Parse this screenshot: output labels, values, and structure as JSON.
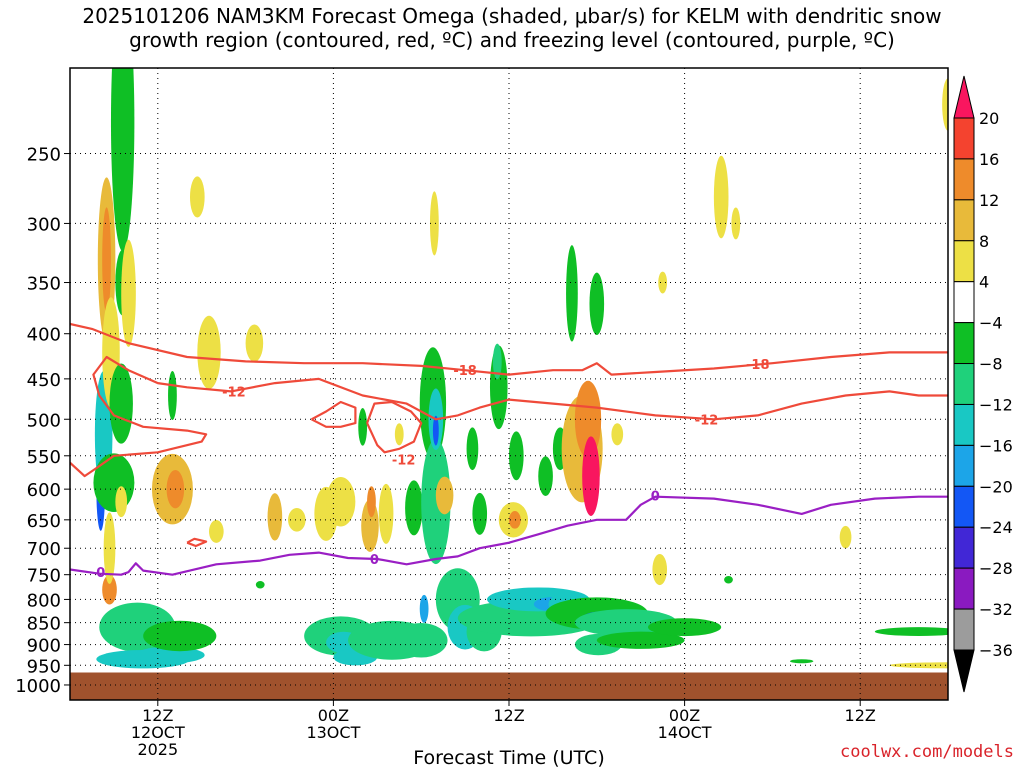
{
  "title_line1": "2025101206 NAM3KM Forecast Omega (shaded, μbar/s) for KELM with dendritic snow",
  "title_line2": "growth region (contoured, red, ºC) and freezing level (contoured, purple, ºC)",
  "credit": "coolwx.com/models",
  "chart_data": {
    "type": "heatmap",
    "title": "2025101206 NAM3KM Forecast Omega (shaded, μbar/s) for KELM with dendritic snow growth region (contoured, red, ºC) and freezing level (contoured, purple, ºC)",
    "xlabel": "Forecast Time (UTC)",
    "ylabel": "",
    "xlim_hours": [
      0,
      60
    ],
    "ylim_pressure": [
      200,
      1040
    ],
    "y_scale": "log",
    "y_ticks": [
      250,
      300,
      350,
      400,
      450,
      500,
      550,
      600,
      650,
      700,
      750,
      800,
      850,
      900,
      950,
      1000
    ],
    "x_ticks": [
      {
        "hour": 6,
        "lines": [
          "12Z",
          "12OCT",
          "2025"
        ]
      },
      {
        "hour": 18,
        "lines": [
          "00Z",
          "13OCT"
        ]
      },
      {
        "hour": 30,
        "lines": [
          "12Z"
        ]
      },
      {
        "hour": 42,
        "lines": [
          "00Z",
          "14OCT"
        ]
      },
      {
        "hour": 54,
        "lines": [
          "12Z"
        ]
      }
    ],
    "grid": true,
    "surface_pressure": 968,
    "colorbar": {
      "levels": [
        20,
        16,
        12,
        8,
        4,
        -4,
        -8,
        -12,
        -16,
        -20,
        -24,
        -28,
        -32,
        -36
      ],
      "colors": [
        "#f9165f",
        "#f4432f",
        "#ee8b2b",
        "#e8ba3a",
        "#ede045",
        "#ffffff",
        "#0fbf25",
        "#1fd17b",
        "#19c8c4",
        "#1ca5e8",
        "#1357f5",
        "#4127d6",
        "#8a1ac0",
        "#9c9c9c",
        "#000000"
      ]
    },
    "omega_features": [
      {
        "t": 2.1,
        "p": 600,
        "dt": 0.3,
        "dp": 130,
        "v": -24
      },
      {
        "t": 2.3,
        "p": 520,
        "dt": 0.6,
        "dp": 170,
        "v": -16
      },
      {
        "t": 2.5,
        "p": 330,
        "dt": 0.6,
        "dp": 140,
        "v": 10
      },
      {
        "t": 2.5,
        "p": 330,
        "dt": 0.3,
        "dp": 90,
        "v": 14
      },
      {
        "t": 2.8,
        "p": 420,
        "dt": 0.6,
        "dp": 120,
        "v": 6
      },
      {
        "t": 2.7,
        "p": 780,
        "dt": 0.5,
        "dp": 60,
        "v": 12
      },
      {
        "t": 2.7,
        "p": 700,
        "dt": 0.4,
        "dp": 130,
        "v": 6
      },
      {
        "t": 3.0,
        "p": 590,
        "dt": 1.4,
        "dp": 90,
        "v": -8
      },
      {
        "t": 3.6,
        "p": 230,
        "dt": 0.8,
        "dp": 150,
        "v": -8
      },
      {
        "t": 3.6,
        "p": 350,
        "dt": 0.5,
        "dp": 60,
        "v": -8
      },
      {
        "t": 3.5,
        "p": 480,
        "dt": 0.8,
        "dp": 100,
        "v": -8
      },
      {
        "t": 4.0,
        "p": 360,
        "dt": 0.5,
        "dp": 100,
        "v": 6
      },
      {
        "t": 4.6,
        "p": 860,
        "dt": 2.6,
        "dp": 110,
        "v": -10
      },
      {
        "t": 5.0,
        "p": 935,
        "dt": 3.2,
        "dp": 45,
        "v": -16
      },
      {
        "t": 6.8,
        "p": 925,
        "dt": 2.4,
        "dp": 40,
        "v": -14
      },
      {
        "t": 7.5,
        "p": 880,
        "dt": 2.5,
        "dp": 70,
        "v": -8
      },
      {
        "t": 3.5,
        "p": 620,
        "dt": 0.4,
        "dp": 50,
        "v": 6
      },
      {
        "t": 7.0,
        "p": 470,
        "dt": 0.3,
        "dp": 60,
        "v": -8
      },
      {
        "t": 7.0,
        "p": 600,
        "dt": 1.4,
        "dp": 110,
        "v": 8
      },
      {
        "t": 7.2,
        "p": 600,
        "dt": 0.6,
        "dp": 60,
        "v": 13
      },
      {
        "t": 8.7,
        "p": 280,
        "dt": 0.5,
        "dp": 30,
        "v": 6
      },
      {
        "t": 9.5,
        "p": 420,
        "dt": 0.8,
        "dp": 80,
        "v": 6
      },
      {
        "t": 10.0,
        "p": 670,
        "dt": 0.5,
        "dp": 40,
        "v": 6
      },
      {
        "t": 12.6,
        "p": 410,
        "dt": 0.6,
        "dp": 40,
        "v": 6
      },
      {
        "t": 13.0,
        "p": 770,
        "dt": 0.3,
        "dp": 15,
        "v": -8
      },
      {
        "t": 14.0,
        "p": 645,
        "dt": 0.5,
        "dp": 80,
        "v": 8
      },
      {
        "t": 15.5,
        "p": 650,
        "dt": 0.6,
        "dp": 40,
        "v": 6
      },
      {
        "t": 17.5,
        "p": 640,
        "dt": 0.8,
        "dp": 90,
        "v": 6
      },
      {
        "t": 18.5,
        "p": 620,
        "dt": 1.0,
        "dp": 80,
        "v": 6
      },
      {
        "t": 18.5,
        "p": 880,
        "dt": 2.5,
        "dp": 90,
        "v": -10
      },
      {
        "t": 18.7,
        "p": 895,
        "dt": 1.2,
        "dp": 50,
        "v": -14
      },
      {
        "t": 19.5,
        "p": 930,
        "dt": 1.5,
        "dp": 40,
        "v": -16
      },
      {
        "t": 20.0,
        "p": 510,
        "dt": 0.3,
        "dp": 50,
        "v": -8
      },
      {
        "t": 20.5,
        "p": 660,
        "dt": 0.6,
        "dp": 90,
        "v": 8
      },
      {
        "t": 20.6,
        "p": 620,
        "dt": 0.3,
        "dp": 50,
        "v": 12
      },
      {
        "t": 21.6,
        "p": 640,
        "dt": 0.5,
        "dp": 100,
        "v": 6
      },
      {
        "t": 22.0,
        "p": 890,
        "dt": 3.0,
        "dp": 90,
        "v": -10
      },
      {
        "t": 22.5,
        "p": 520,
        "dt": 0.3,
        "dp": 30,
        "v": 6
      },
      {
        "t": 23.5,
        "p": 630,
        "dt": 0.6,
        "dp": 90,
        "v": -8
      },
      {
        "t": 24.0,
        "p": 890,
        "dt": 1.8,
        "dp": 80,
        "v": -12
      },
      {
        "t": 24.2,
        "p": 820,
        "dt": 0.3,
        "dp": 60,
        "v": -20
      },
      {
        "t": 24.8,
        "p": 480,
        "dt": 0.9,
        "dp": 140,
        "v": -8
      },
      {
        "t": 25.0,
        "p": 620,
        "dt": 1.0,
        "dp": 200,
        "v": -10
      },
      {
        "t": 25.0,
        "p": 500,
        "dt": 0.5,
        "dp": 80,
        "v": -14
      },
      {
        "t": 25.0,
        "p": 515,
        "dt": 0.2,
        "dp": 40,
        "v": -22
      },
      {
        "t": 24.9,
        "p": 300,
        "dt": 0.3,
        "dp": 50,
        "v": 6
      },
      {
        "t": 25.6,
        "p": 610,
        "dt": 0.6,
        "dp": 60,
        "v": 8
      },
      {
        "t": 26.5,
        "p": 800,
        "dt": 1.5,
        "dp": 130,
        "v": -10
      },
      {
        "t": 27.0,
        "p": 860,
        "dt": 1.2,
        "dp": 100,
        "v": -14
      },
      {
        "t": 27.5,
        "p": 540,
        "dt": 0.4,
        "dp": 60,
        "v": -8
      },
      {
        "t": 28.0,
        "p": 640,
        "dt": 0.5,
        "dp": 70,
        "v": -8
      },
      {
        "t": 28.3,
        "p": 870,
        "dt": 1.2,
        "dp": 90,
        "v": -10
      },
      {
        "t": 29.3,
        "p": 460,
        "dt": 0.6,
        "dp": 100,
        "v": -8
      },
      {
        "t": 29.2,
        "p": 430,
        "dt": 0.3,
        "dp": 40,
        "v": -12
      },
      {
        "t": 30.3,
        "p": 650,
        "dt": 1.0,
        "dp": 60,
        "v": 6
      },
      {
        "t": 30.4,
        "p": 650,
        "dt": 0.4,
        "dp": 30,
        "v": 12
      },
      {
        "t": 30.5,
        "p": 550,
        "dt": 0.5,
        "dp": 70,
        "v": -8
      },
      {
        "t": 31.5,
        "p": 840,
        "dt": 5.0,
        "dp": 80,
        "v": -10
      },
      {
        "t": 32.0,
        "p": 800,
        "dt": 3.5,
        "dp": 50,
        "v": -14
      },
      {
        "t": 33.0,
        "p": 810,
        "dt": 1.3,
        "dp": 30,
        "v": -18
      },
      {
        "t": 34.0,
        "p": 810,
        "dt": 1.3,
        "dp": 50,
        "v": -14
      },
      {
        "t": 33.5,
        "p": 540,
        "dt": 0.5,
        "dp": 60,
        "v": -8
      },
      {
        "t": 32.5,
        "p": 580,
        "dt": 0.5,
        "dp": 60,
        "v": -8
      },
      {
        "t": 34.3,
        "p": 360,
        "dt": 0.4,
        "dp": 90,
        "v": -8
      },
      {
        "t": 35.0,
        "p": 540,
        "dt": 1.4,
        "dp": 150,
        "v": 10
      },
      {
        "t": 35.4,
        "p": 500,
        "dt": 0.9,
        "dp": 100,
        "v": 13
      },
      {
        "t": 35.6,
        "p": 580,
        "dt": 0.6,
        "dp": 120,
        "v": 20
      },
      {
        "t": 36.1,
        "p": 900,
        "dt": 1.6,
        "dp": 50,
        "v": -10
      },
      {
        "t": 36.0,
        "p": 830,
        "dt": 3.5,
        "dp": 70,
        "v": -8
      },
      {
        "t": 36.5,
        "p": 840,
        "dt": 1.5,
        "dp": 30,
        "v": -22
      },
      {
        "t": 36.0,
        "p": 370,
        "dt": 0.5,
        "dp": 60,
        "v": -8
      },
      {
        "t": 37.4,
        "p": 520,
        "dt": 0.4,
        "dp": 30,
        "v": 6
      },
      {
        "t": 38.0,
        "p": 850,
        "dt": 3.5,
        "dp": 60,
        "v": -10
      },
      {
        "t": 39.0,
        "p": 890,
        "dt": 3.0,
        "dp": 40,
        "v": -8
      },
      {
        "t": 40.3,
        "p": 740,
        "dt": 0.5,
        "dp": 60,
        "v": 6
      },
      {
        "t": 40.5,
        "p": 350,
        "dt": 0.3,
        "dp": 20,
        "v": 6
      },
      {
        "t": 42.0,
        "p": 860,
        "dt": 2.5,
        "dp": 40,
        "v": -8
      },
      {
        "t": 44.5,
        "p": 280,
        "dt": 0.5,
        "dp": 60,
        "v": 6
      },
      {
        "t": 45.5,
        "p": 300,
        "dt": 0.3,
        "dp": 25,
        "v": 6
      },
      {
        "t": 45.0,
        "p": 760,
        "dt": 0.3,
        "dp": 15,
        "v": -8
      },
      {
        "t": 50.0,
        "p": 940,
        "dt": 0.8,
        "dp": 10,
        "v": -8
      },
      {
        "t": 53.0,
        "p": 680,
        "dt": 0.4,
        "dp": 40,
        "v": 6
      },
      {
        "t": 58.0,
        "p": 870,
        "dt": 3.0,
        "dp": 20,
        "v": -8
      },
      {
        "t": 60.0,
        "p": 950,
        "dt": 4.0,
        "dp": 15,
        "v": 6
      },
      {
        "t": 60.0,
        "p": 220,
        "dt": 0.4,
        "dp": 30,
        "v": 6
      }
    ],
    "contours_red": [
      {
        "label": "-18",
        "label_at": [
          [
            27.0,
            440
          ],
          [
            47.0,
            433
          ]
        ],
        "points": [
          [
            0,
            390
          ],
          [
            1.5,
            395
          ],
          [
            4,
            410
          ],
          [
            8,
            425
          ],
          [
            12,
            430
          ],
          [
            16,
            432
          ],
          [
            20,
            432
          ],
          [
            24,
            435
          ],
          [
            27,
            440
          ],
          [
            30,
            445
          ],
          [
            33,
            440
          ],
          [
            35,
            440
          ],
          [
            36,
            432
          ],
          [
            37,
            445
          ],
          [
            40,
            442
          ],
          [
            44,
            438
          ],
          [
            48,
            432
          ],
          [
            52,
            425
          ],
          [
            56,
            420
          ],
          [
            60,
            420
          ]
        ]
      },
      {
        "label": "-12",
        "label_at": [
          [
            11.2,
            465
          ],
          [
            22.8,
            555
          ],
          [
            43.5,
            500
          ]
        ],
        "points": [
          [
            0,
            560
          ],
          [
            1,
            580
          ],
          [
            2,
            565
          ],
          [
            3,
            550
          ],
          [
            6,
            545
          ],
          [
            9,
            530
          ],
          [
            9.3,
            520
          ],
          [
            8,
            515
          ],
          [
            5,
            510
          ],
          [
            3,
            495
          ],
          [
            2.0,
            470
          ],
          [
            1.6,
            445
          ],
          [
            2.5,
            425
          ],
          [
            4,
            440
          ],
          [
            6,
            455
          ],
          [
            8,
            460
          ],
          [
            11,
            465
          ],
          [
            14,
            455
          ],
          [
            17,
            450
          ],
          [
            20,
            470
          ],
          [
            23,
            480
          ],
          [
            25,
            500
          ],
          [
            26.5,
            495
          ],
          [
            28,
            485
          ],
          [
            30,
            475
          ],
          [
            33,
            480
          ],
          [
            36,
            485
          ],
          [
            40,
            495
          ],
          [
            44,
            500
          ],
          [
            47,
            495
          ],
          [
            50,
            480
          ],
          [
            53,
            470
          ],
          [
            56,
            465
          ],
          [
            58,
            470
          ],
          [
            60,
            470
          ]
        ]
      },
      {
        "label": "",
        "label_at": [],
        "points": [
          [
            16.5,
            500
          ],
          [
            17.5,
            490
          ],
          [
            18.5,
            478
          ],
          [
            19.5,
            485
          ],
          [
            19.5,
            505
          ],
          [
            18.5,
            510
          ],
          [
            17.5,
            510
          ],
          [
            16.5,
            500
          ]
        ]
      },
      {
        "label": "",
        "label_at": [],
        "points": [
          [
            20.3,
            505
          ],
          [
            20.8,
            480
          ],
          [
            22.0,
            478
          ],
          [
            23.3,
            490
          ],
          [
            24.0,
            505
          ],
          [
            23.5,
            530
          ],
          [
            22.5,
            540
          ],
          [
            21.5,
            545
          ],
          [
            21.0,
            535
          ],
          [
            20.3,
            505
          ]
        ]
      },
      {
        "label": "",
        "label_at": [],
        "points": [
          [
            8.0,
            690
          ],
          [
            8.5,
            683
          ],
          [
            9.3,
            688
          ],
          [
            8.6,
            696
          ],
          [
            8.0,
            690
          ]
        ]
      }
    ],
    "contour_purple": {
      "label": "0",
      "label_at": [
        [
          2.1,
          745
        ],
        [
          20.8,
          720
        ],
        [
          40.0,
          610
        ]
      ],
      "points": [
        [
          0,
          740
        ],
        [
          2,
          748
        ],
        [
          3.5,
          750
        ],
        [
          4,
          745
        ],
        [
          4.5,
          728
        ],
        [
          5,
          742
        ],
        [
          7,
          750
        ],
        [
          10,
          730
        ],
        [
          13,
          723
        ],
        [
          15,
          712
        ],
        [
          17,
          708
        ],
        [
          19,
          718
        ],
        [
          21,
          720
        ],
        [
          23,
          730
        ],
        [
          25,
          720
        ],
        [
          26.5,
          715
        ],
        [
          28,
          700
        ],
        [
          30,
          690
        ],
        [
          32,
          675
        ],
        [
          34,
          660
        ],
        [
          36,
          650
        ],
        [
          38,
          650
        ],
        [
          39,
          625
        ],
        [
          40,
          612
        ],
        [
          44,
          615
        ],
        [
          47,
          625
        ],
        [
          50,
          640
        ],
        [
          52,
          625
        ],
        [
          55,
          615
        ],
        [
          58,
          612
        ],
        [
          60,
          612
        ]
      ]
    }
  }
}
